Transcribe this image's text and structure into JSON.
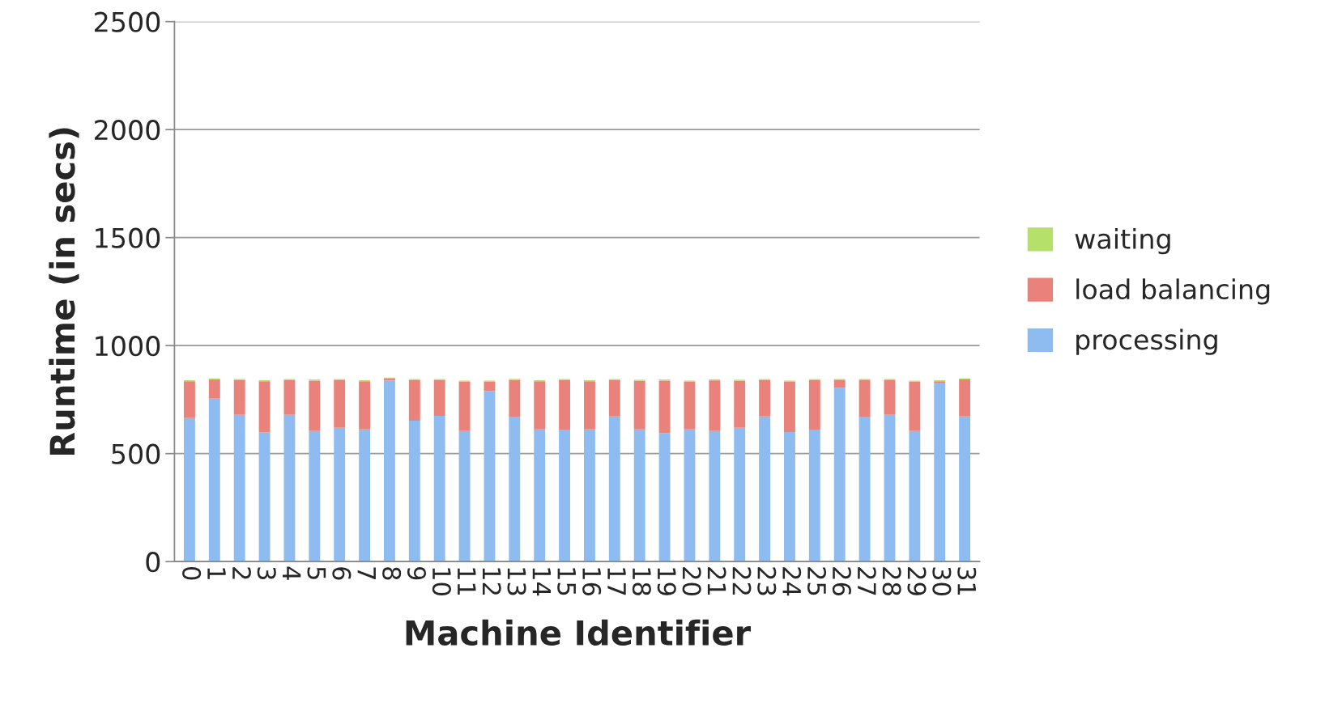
{
  "chart_data": {
    "type": "bar",
    "stacked": true,
    "xlabel": "Machine Identifier",
    "ylabel": "Runtime (in secs)",
    "categories": [
      "0",
      "1",
      "2",
      "3",
      "4",
      "5",
      "6",
      "7",
      "8",
      "9",
      "10",
      "11",
      "12",
      "13",
      "14",
      "15",
      "16",
      "17",
      "18",
      "19",
      "20",
      "21",
      "22",
      "23",
      "24",
      "25",
      "26",
      "27",
      "28",
      "29",
      "30",
      "31"
    ],
    "series": [
      {
        "name": "processing",
        "color": "#8fbcf0",
        "values": [
          665,
          755,
          680,
          598,
          680,
          605,
          620,
          612,
          838,
          652,
          675,
          605,
          790,
          668,
          612,
          608,
          612,
          672,
          612,
          595,
          612,
          605,
          620,
          672,
          600,
          608,
          805,
          668,
          680,
          605,
          828,
          672
        ]
      },
      {
        "name": "load balancing",
        "color": "#e8827a",
        "values": [
          170,
          88,
          160,
          237,
          160,
          233,
          220,
          223,
          9,
          188,
          165,
          228,
          43,
          173,
          223,
          232,
          223,
          168,
          225,
          243,
          221,
          234,
          217,
          168,
          233,
          232,
          35,
          172,
          160,
          228,
          7,
          171
        ]
      },
      {
        "name": "waiting",
        "color": "#b5e06a",
        "values": [
          5,
          5,
          5,
          5,
          5,
          5,
          5,
          5,
          5,
          5,
          5,
          5,
          5,
          5,
          5,
          5,
          5,
          5,
          5,
          5,
          5,
          5,
          5,
          5,
          5,
          5,
          5,
          5,
          5,
          5,
          5,
          5
        ]
      }
    ],
    "ylim": [
      0,
      2500
    ],
    "yticks": [
      0,
      500,
      1000,
      1500,
      2000,
      2500
    ],
    "grid": "y",
    "legend": "right"
  }
}
